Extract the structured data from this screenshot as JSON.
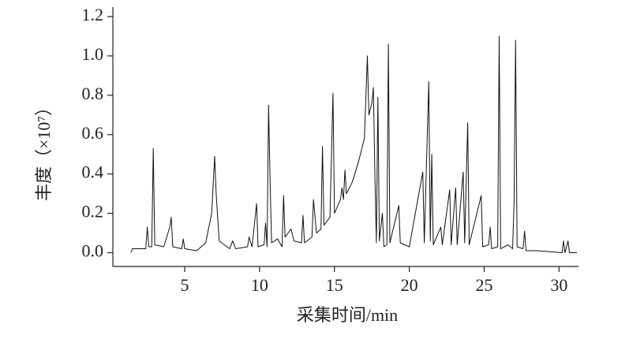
{
  "chart_data": {
    "type": "line",
    "xlabel": "采集时间/min",
    "ylabel": "丰度（×10⁷）",
    "xlim": [
      0.2,
      31.3
    ],
    "ylim": [
      -0.07,
      1.2
    ],
    "xticks": [
      5,
      10,
      15,
      20,
      25,
      30
    ],
    "yticks": [
      {
        "value": 0,
        "label": "0.0"
      },
      0.2,
      0.4,
      0.6,
      0.8,
      {
        "value": 1,
        "label": "1.0"
      },
      1.2
    ],
    "series": [
      {
        "color": "#111111",
        "x": [
          1.4,
          1.5,
          2.4,
          2.5,
          2.6,
          2.8,
          2.9,
          3.0,
          3.6,
          4.0,
          4.1,
          4.2,
          4.8,
          4.9,
          5.0,
          5.8,
          6.4,
          6.8,
          7.0,
          7.1,
          7.3,
          8.0,
          8.2,
          8.4,
          9.2,
          9.3,
          9.5,
          9.8,
          9.9,
          10.3,
          10.4,
          10.5,
          10.6,
          10.7,
          10.8,
          11.2,
          11.5,
          11.6,
          11.7,
          12.1,
          12.3,
          12.8,
          12.9,
          13.0,
          13.5,
          13.6,
          13.8,
          14.1,
          14.2,
          14.3,
          14.7,
          14.9,
          15.0,
          15.4,
          15.5,
          15.6,
          15.7,
          15.8,
          16.2,
          16.6,
          17.0,
          17.2,
          17.3,
          17.5,
          17.6,
          17.7,
          17.8,
          17.9,
          18.0,
          18.2,
          18.3,
          18.5,
          18.6,
          18.7,
          19.3,
          19.4,
          20.0,
          20.9,
          21.0,
          21.3,
          21.4,
          21.5,
          21.6,
          22.1,
          22.2,
          22.7,
          22.8,
          23.1,
          23.2,
          23.6,
          23.7,
          23.9,
          24.0,
          24.8,
          24.9,
          25.3,
          25.4,
          25.5,
          25.9,
          26.0,
          26.1,
          26.6,
          26.9,
          27.0,
          27.1,
          27.2,
          27.6,
          27.7,
          27.8,
          28.5,
          30.2,
          30.3,
          30.4,
          30.6,
          30.7,
          31.2
        ],
        "values": [
          0.0,
          0.02,
          0.02,
          0.13,
          0.03,
          0.03,
          0.53,
          0.04,
          0.03,
          0.13,
          0.18,
          0.03,
          0.02,
          0.07,
          0.02,
          0.01,
          0.05,
          0.2,
          0.49,
          0.3,
          0.06,
          0.02,
          0.06,
          0.02,
          0.03,
          0.08,
          0.03,
          0.25,
          0.03,
          0.04,
          0.15,
          0.03,
          0.75,
          0.37,
          0.05,
          0.07,
          0.03,
          0.29,
          0.08,
          0.12,
          0.06,
          0.05,
          0.19,
          0.05,
          0.08,
          0.27,
          0.1,
          0.12,
          0.54,
          0.14,
          0.18,
          0.81,
          0.2,
          0.27,
          0.33,
          0.27,
          0.42,
          0.3,
          0.36,
          0.46,
          0.58,
          1.0,
          0.7,
          0.76,
          0.84,
          0.4,
          0.05,
          0.79,
          0.06,
          0.2,
          0.03,
          0.04,
          1.06,
          0.05,
          0.24,
          0.05,
          0.03,
          0.41,
          0.05,
          0.87,
          0.06,
          0.5,
          0.04,
          0.13,
          0.04,
          0.32,
          0.04,
          0.33,
          0.04,
          0.41,
          0.05,
          0.66,
          0.04,
          0.29,
          0.03,
          0.04,
          0.13,
          0.02,
          0.03,
          1.1,
          0.02,
          0.04,
          0.02,
          0.26,
          1.08,
          0.03,
          0.02,
          0.11,
          0.01,
          0.01,
          0.0,
          0.06,
          0.0,
          0.06,
          0.0,
          0.0
        ]
      }
    ]
  }
}
